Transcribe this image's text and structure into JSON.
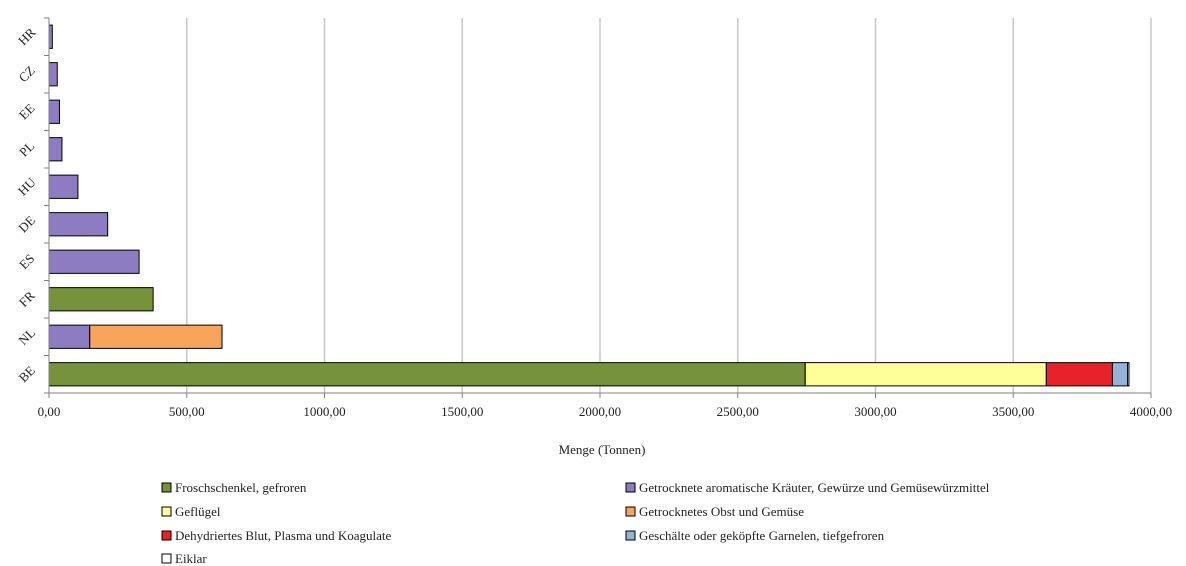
{
  "chart_data": {
    "type": "bar",
    "orientation": "horizontal",
    "stacked": true,
    "categories": [
      "BE",
      "NL",
      "FR",
      "ES",
      "DE",
      "HU",
      "PL",
      "EE",
      "CZ",
      "HR"
    ],
    "series": [
      {
        "name": "Froschschenkel, gefroren",
        "color": "#76933c",
        "values": [
          2745,
          0,
          378,
          0,
          0,
          0,
          0,
          0,
          0,
          0
        ]
      },
      {
        "name": "Getrocknete aromatische Kräuter, Gewürze und Gemüsewürzmittel",
        "color": "#8e7cc3",
        "values": [
          0,
          148,
          0,
          327,
          213,
          105,
          47,
          38,
          30,
          12
        ]
      },
      {
        "name": "Geflügel",
        "color": "#ffff99",
        "values": [
          875,
          0,
          0,
          0,
          0,
          0,
          0,
          0,
          0,
          0
        ]
      },
      {
        "name": "Getrocknetes Obst und Gemüse",
        "color": "#f9a45b",
        "values": [
          0,
          480,
          0,
          0,
          0,
          0,
          0,
          0,
          0,
          0
        ]
      },
      {
        "name": "Dehydriertes Blut, Plasma und Koagulate",
        "color": "#e8212b",
        "values": [
          240,
          0,
          0,
          0,
          0,
          0,
          0,
          0,
          0,
          0
        ]
      },
      {
        "name": "Geschälte oder geköpfte Garnelen, tiefgefroren",
        "color": "#95b3d7",
        "values": [
          55,
          0,
          0,
          0,
          0,
          0,
          0,
          0,
          0,
          0
        ]
      },
      {
        "name": "Eiklar",
        "color": "#ffffff",
        "values": [
          5,
          0,
          0,
          0,
          0,
          0,
          0,
          0,
          0,
          0
        ]
      }
    ],
    "xlabel": "Menge (Tonnen)",
    "xlim": [
      0,
      4000
    ],
    "xticks": [
      0,
      500,
      1000,
      1500,
      2000,
      2500,
      3000,
      3500,
      4000
    ],
    "xtick_labels": [
      "0,00",
      "500,00",
      "1000,00",
      "1500,00",
      "2000,00",
      "2500,00",
      "3000,00",
      "3500,00",
      "4000,00"
    ],
    "grid": "vertical",
    "legend_position": "bottom"
  }
}
